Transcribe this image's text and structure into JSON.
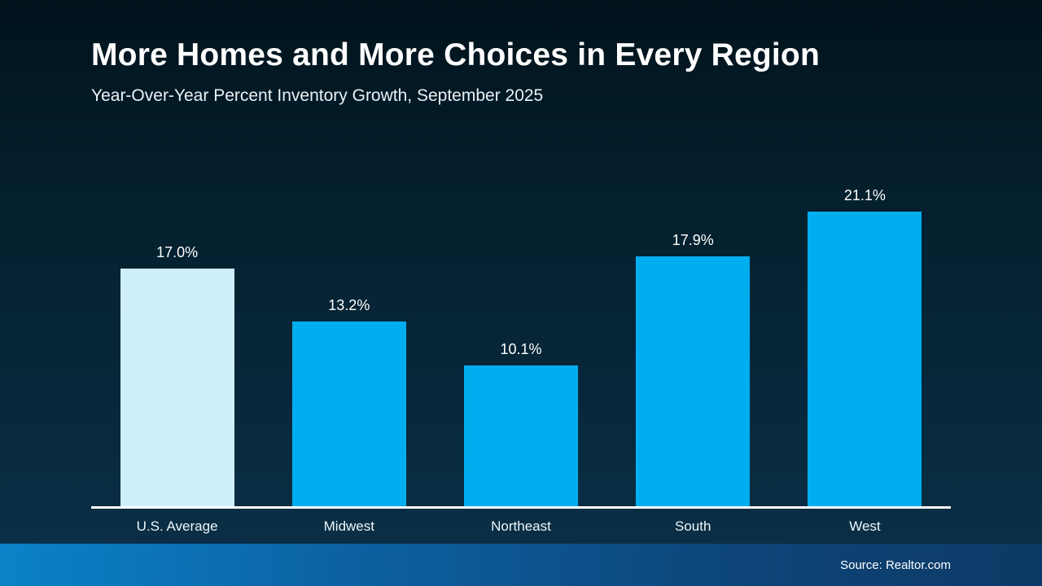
{
  "chart_data": {
    "type": "bar",
    "title": "More Homes and More Choices in Every Region",
    "subtitle": "Year-Over-Year Percent Inventory Growth, September 2025",
    "categories": [
      "U.S. Average",
      "Midwest",
      "Northeast",
      "South",
      "West"
    ],
    "values": [
      17.0,
      13.2,
      10.1,
      17.9,
      21.1
    ],
    "value_labels": [
      "17.0%",
      "13.2%",
      "10.1%",
      "17.9%",
      "21.1%"
    ],
    "unit": "%",
    "ylim": [
      0,
      24
    ],
    "grid": false,
    "legend": false,
    "colors": {
      "bar": "#00aeef",
      "highlight": "#cfeefb",
      "axis_line": "#ffffff"
    }
  },
  "footer": {
    "source": "Source: Realtor.com"
  }
}
